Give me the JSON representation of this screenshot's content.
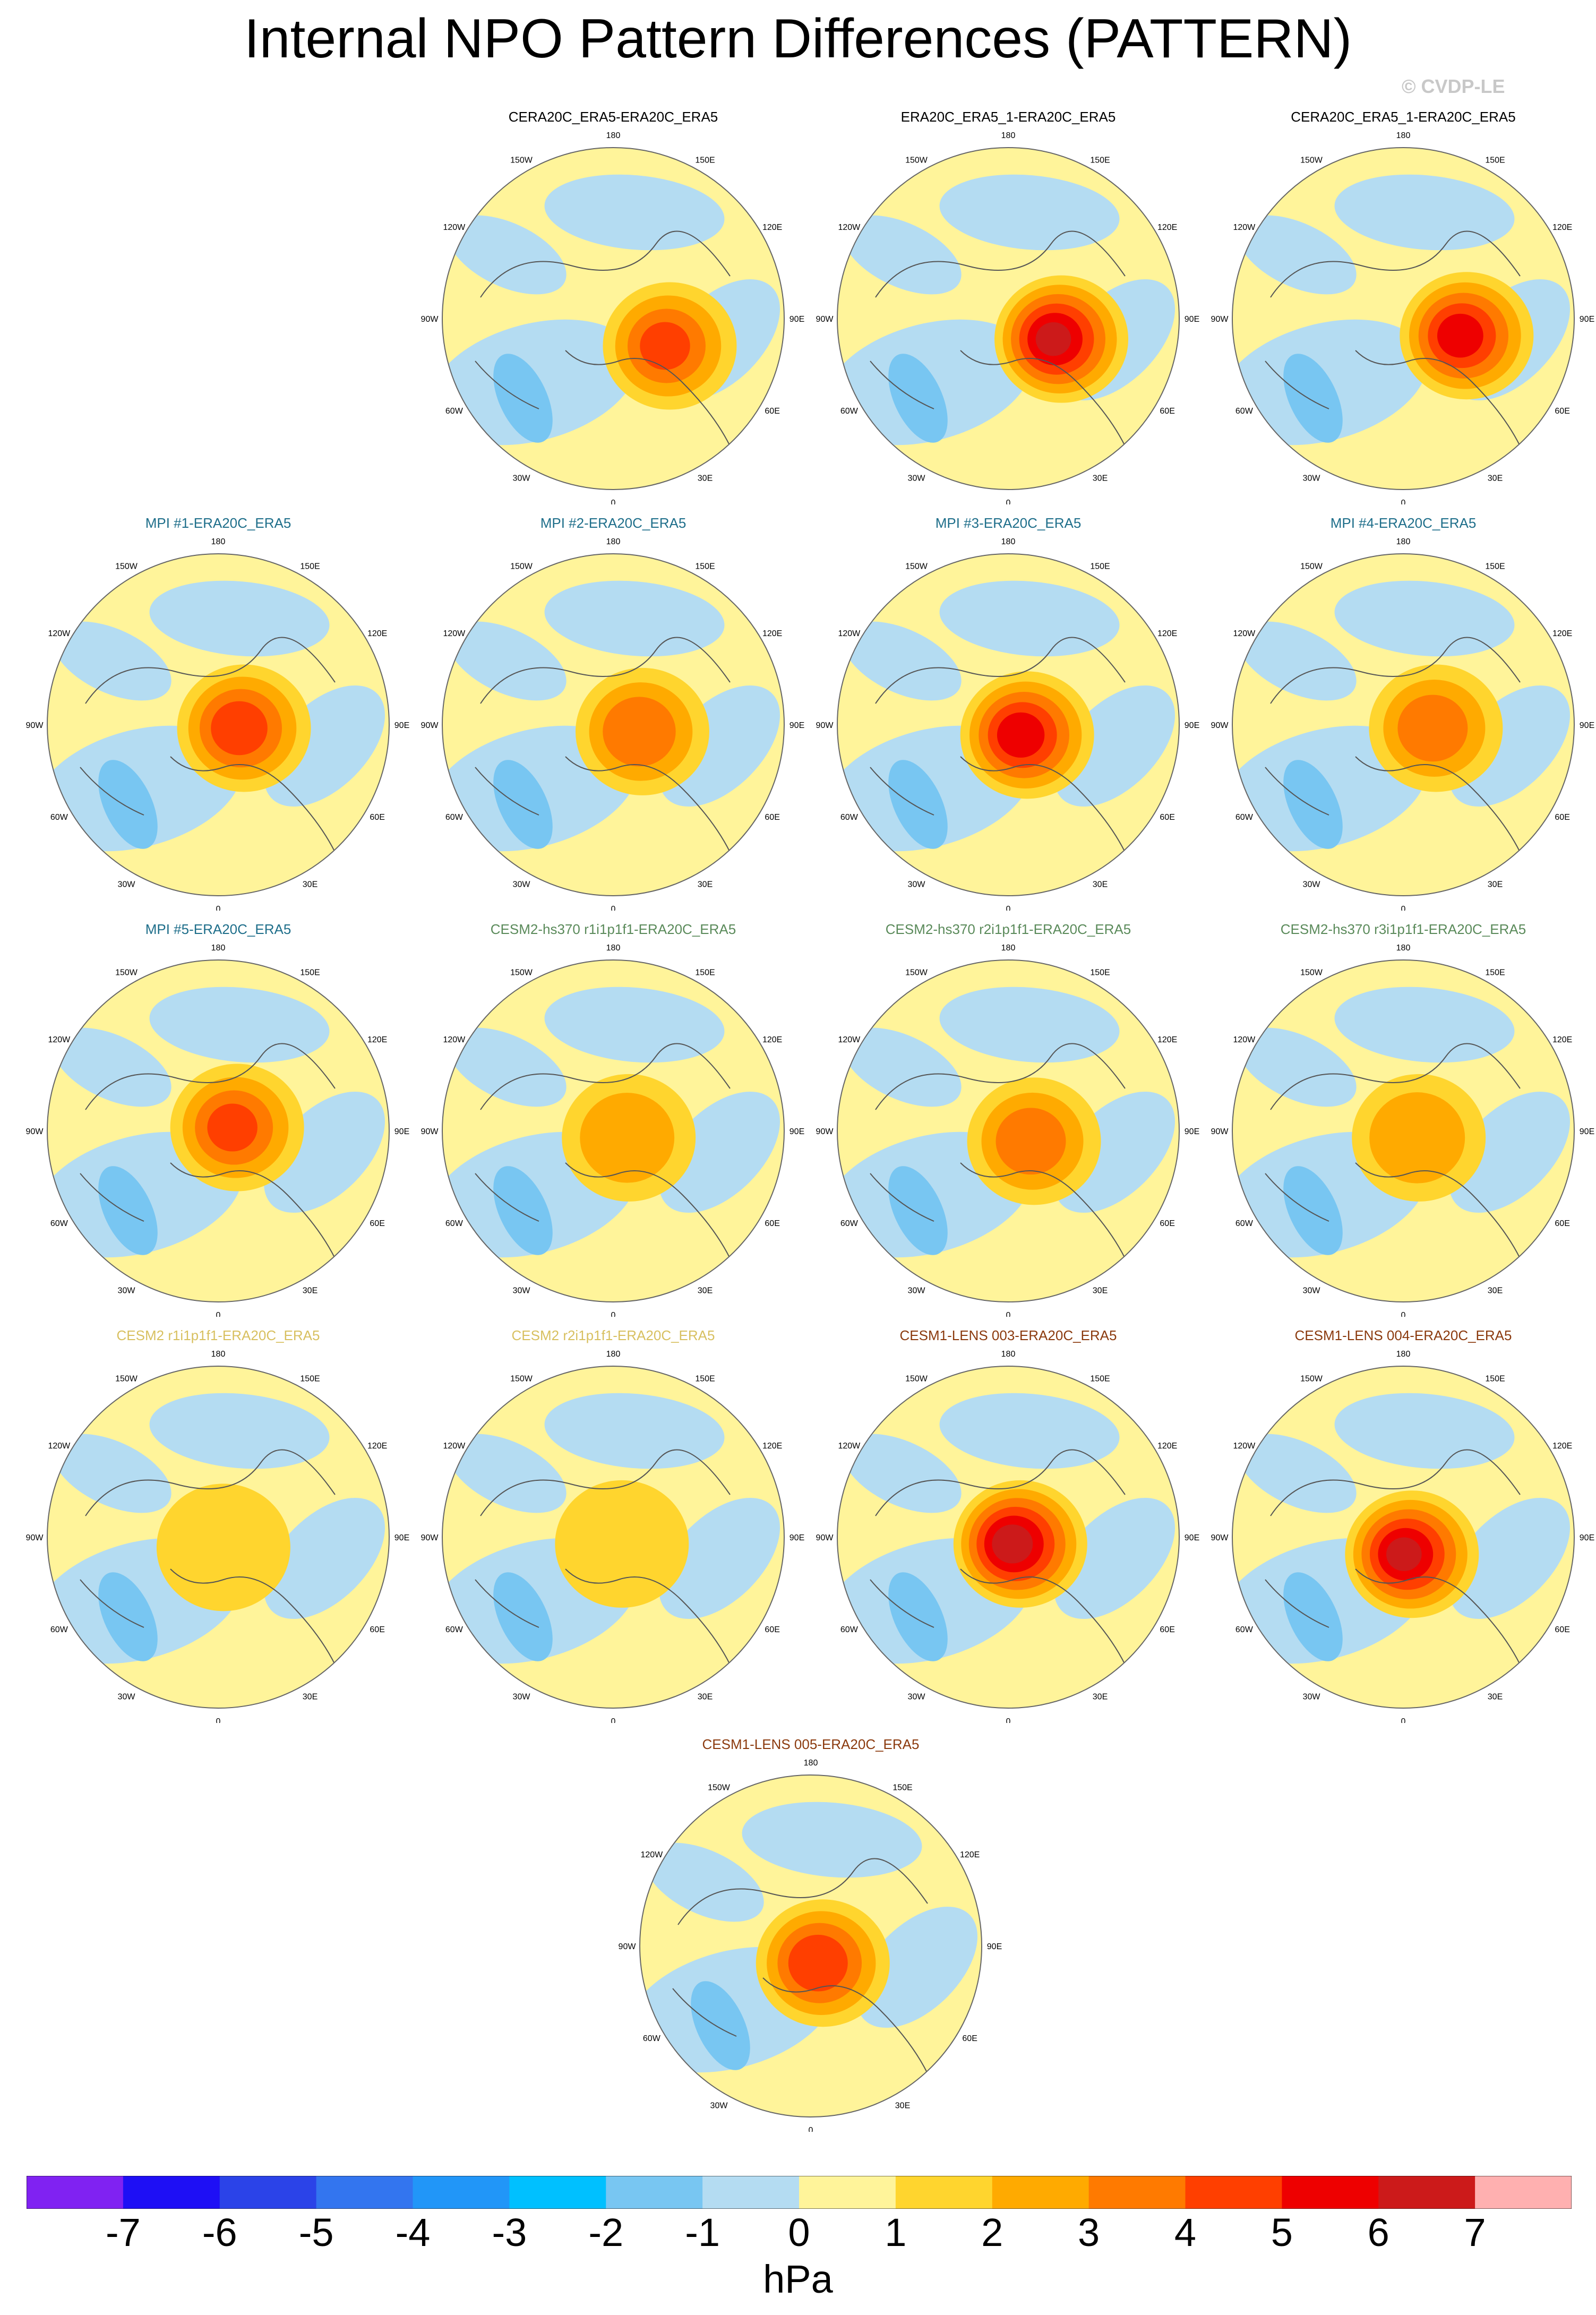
{
  "title": "Internal NPO Pattern Differences (PATTERN)",
  "credit": "© CVDP-LE",
  "units": "hPa",
  "lon_labels": {
    "top": "180",
    "top_left": "150W",
    "top_right": "150E",
    "upper_left": "120W",
    "upper_right": "120E",
    "left": "90W",
    "right": "90E",
    "lower_left": "60W",
    "lower_right": "60E",
    "bottom_left": "30W",
    "bottom_right": "30E",
    "bottom": "0"
  },
  "colorbar": {
    "colors": [
      "#8022f2",
      "#1e0ff5",
      "#2b43e8",
      "#3375ef",
      "#2196f8",
      "#00c0ff",
      "#78c6f2",
      "#b4dcf2",
      "#fff49a",
      "#ffd52e",
      "#ffaa00",
      "#ff7a00",
      "#ff3f00",
      "#ee0000",
      "#cc1a1a",
      "#ffb0b0"
    ],
    "labels": [
      "-7",
      "-6",
      "-5",
      "-4",
      "-3",
      "-2",
      "-1",
      "0",
      "1",
      "2",
      "3",
      "4",
      "5",
      "6",
      "7"
    ]
  },
  "panels": [
    {
      "title": "CERA20C_ERA5-ERA20C_ERA5",
      "title_color": "#000000",
      "blob": [
        0.34,
        0.16,
        4.2
      ]
    },
    {
      "title": "ERA20C_ERA5_1-ERA20C_ERA5",
      "title_color": "#000000",
      "blob": [
        0.32,
        0.12,
        6.2
      ]
    },
    {
      "title": "CERA20C_ERA5_1-ERA20C_ERA5",
      "title_color": "#000000",
      "blob": [
        0.38,
        0.1,
        5.5
      ]
    },
    {
      "title": "MPI #1-ERA20C_ERA5",
      "title_color": "#1e6e8a",
      "blob": [
        0.16,
        0.02,
        4.6
      ]
    },
    {
      "title": "MPI #2-ERA20C_ERA5",
      "title_color": "#1e6e8a",
      "blob": [
        0.18,
        0.04,
        3.8
      ]
    },
    {
      "title": "MPI #3-ERA20C_ERA5",
      "title_color": "#1e6e8a",
      "blob": [
        0.12,
        0.06,
        5.6
      ]
    },
    {
      "title": "MPI #4-ERA20C_ERA5",
      "title_color": "#1e6e8a",
      "blob": [
        0.2,
        0.02,
        3.6
      ]
    },
    {
      "title": "MPI #5-ERA20C_ERA5",
      "title_color": "#1e6e8a",
      "blob": [
        0.12,
        -0.02,
        4.2
      ]
    },
    {
      "title": "CESM2-hs370 r1i1p1f1-ERA20C_ERA5",
      "title_color": "#5a8a5a",
      "blob": [
        0.1,
        0.04,
        2.8
      ]
    },
    {
      "title": "CESM2-hs370 r2i1p1f1-ERA20C_ERA5",
      "title_color": "#5a8a5a",
      "blob": [
        0.16,
        0.06,
        3.6
      ]
    },
    {
      "title": "CESM2-hs370 r3i1p1f1-ERA20C_ERA5",
      "title_color": "#5a8a5a",
      "blob": [
        0.1,
        0.04,
        2.9
      ]
    },
    {
      "title": "CESM2 r1i1p1f1-ERA20C_ERA5",
      "title_color": "#d8c060",
      "blob": [
        0.04,
        0.06,
        1.8
      ]
    },
    {
      "title": "CESM2 r2i1p1f1-ERA20C_ERA5",
      "title_color": "#d8c060",
      "blob": [
        0.06,
        0.04,
        1.9
      ]
    },
    {
      "title": "CESM1-LENS 003-ERA20C_ERA5",
      "title_color": "#8b3a0e",
      "blob": [
        0.08,
        0.04,
        6.6
      ]
    },
    {
      "title": "CESM1-LENS 004-ERA20C_ERA5",
      "title_color": "#8b3a0e",
      "blob": [
        0.06,
        0.1,
        6.2
      ]
    },
    {
      "title": "CESM1-LENS 005-ERA20C_ERA5",
      "title_color": "#8b3a0e",
      "blob": [
        0.08,
        0.1,
        4.8
      ]
    }
  ]
}
